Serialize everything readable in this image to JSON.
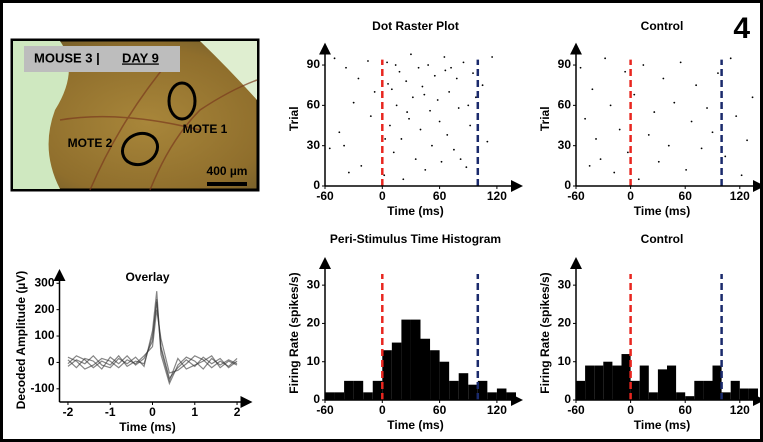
{
  "figure_label": "4",
  "photo": {
    "mouse": "MOUSE 3 |",
    "day": "DAY 9",
    "motes": [
      "MOTE 1",
      "MOTE 2"
    ],
    "scale_bar": "400 µm"
  },
  "chart_data": [
    {
      "type": "line",
      "title": "Overlay",
      "x_label": "Time (ms)",
      "y_label": "Decoded Amplitude (µV)",
      "x": [
        -2,
        -1.8,
        -1.6,
        -1.4,
        -1.2,
        -1,
        -0.8,
        -0.6,
        -0.4,
        -0.2,
        0,
        0.1,
        0.2,
        0.4,
        0.6,
        0.8,
        1,
        1.2,
        1.4,
        1.6,
        1.8,
        2
      ],
      "series": [
        {
          "color": "#333333",
          "values": [
            10,
            -20,
            15,
            5,
            -25,
            20,
            -5,
            25,
            -10,
            15,
            80,
            240,
            60,
            -60,
            -20,
            10,
            -15,
            20,
            -5,
            15,
            -20,
            5
          ]
        },
        {
          "color": "#333333",
          "values": [
            -15,
            10,
            -5,
            25,
            -10,
            -20,
            15,
            -5,
            20,
            -15,
            120,
            270,
            30,
            -80,
            -10,
            20,
            5,
            -25,
            15,
            -10,
            10,
            -5
          ]
        },
        {
          "color": "#333333",
          "values": [
            20,
            5,
            -25,
            -10,
            15,
            5,
            -20,
            10,
            -5,
            25,
            60,
            200,
            90,
            -40,
            -30,
            -5,
            25,
            10,
            -20,
            5,
            -15,
            15
          ]
        },
        {
          "color": "#333333",
          "values": [
            -5,
            25,
            10,
            -20,
            5,
            -10,
            25,
            -15,
            5,
            -5,
            100,
            230,
            50,
            -70,
            15,
            -25,
            -10,
            5,
            25,
            -20,
            5,
            -10
          ]
        }
      ],
      "xlim": [
        -2.2,
        2.2
      ],
      "xticks": [
        -2,
        -1,
        0,
        1,
        2
      ],
      "ylim": [
        -150,
        320
      ],
      "yticks": [
        -100,
        0,
        100,
        200,
        300
      ]
    },
    {
      "type": "scatter",
      "title": "Dot Raster Plot",
      "x_label": "Time (ms)",
      "y_label": "Trial",
      "color": "#000000",
      "x": [
        -50,
        -45,
        -38,
        -30,
        -22,
        -15,
        -8,
        -40,
        -25,
        -12,
        2,
        5,
        8,
        10,
        12,
        15,
        18,
        20,
        22,
        25,
        28,
        30,
        32,
        35,
        38,
        40,
        42,
        45,
        48,
        50,
        52,
        55,
        58,
        60,
        62,
        65,
        68,
        70,
        72,
        75,
        78,
        80,
        85,
        88,
        92,
        95,
        98,
        105,
        110,
        115,
        -35,
        -55,
        3,
        14,
        26,
        44,
        66,
        82,
        90,
        6
      ],
      "y": [
        95,
        40,
        88,
        62,
        15,
        93,
        70,
        30,
        80,
        52,
        8,
        92,
        45,
        72,
        25,
        60,
        85,
        35,
        5,
        78,
        50,
        98,
        66,
        20,
        88,
        42,
        74,
        12,
        90,
        56,
        30,
        82,
        64,
        48,
        18,
        96,
        38,
        70,
        88,
        27,
        80,
        58,
        92,
        14,
        45,
        84,
        66,
        75,
        33,
        96,
        10,
        28,
        35,
        90,
        55,
        68,
        86,
        20,
        60,
        76
      ],
      "markers": [
        {
          "x": 0,
          "color": "#e8261f"
        },
        {
          "x": 100,
          "color": "#1a2a6c"
        }
      ],
      "xlim": [
        -60,
        140
      ],
      "xticks": [
        -60,
        0,
        60,
        120
      ],
      "ylim": [
        0,
        100
      ],
      "yticks": [
        0,
        30,
        60,
        90
      ]
    },
    {
      "type": "scatter",
      "title": "Control",
      "x_label": "Time (ms)",
      "y_label": "Trial",
      "color": "#000000",
      "x": [
        -55,
        -50,
        -45,
        -42,
        -38,
        -33,
        -28,
        -22,
        -18,
        -12,
        -6,
        -3,
        4,
        9,
        14,
        20,
        26,
        31,
        36,
        42,
        48,
        55,
        61,
        67,
        72,
        78,
        84,
        90,
        96,
        104,
        110,
        116,
        122,
        128,
        134
      ],
      "y": [
        88,
        50,
        15,
        72,
        35,
        20,
        95,
        60,
        10,
        42,
        85,
        25,
        68,
        5,
        90,
        38,
        55,
        18,
        80,
        30,
        62,
        92,
        12,
        48,
        75,
        28,
        58,
        40,
        84,
        22,
        95,
        52,
        8,
        34,
        66
      ],
      "markers": [
        {
          "x": 0,
          "color": "#e8261f"
        },
        {
          "x": 100,
          "color": "#1a2a6c"
        }
      ],
      "xlim": [
        -60,
        140
      ],
      "xticks": [
        -60,
        0,
        60,
        120
      ],
      "ylim": [
        0,
        100
      ],
      "yticks": [
        0,
        30,
        60,
        90
      ]
    },
    {
      "type": "histogram",
      "title": "Peri-Stimulus Time Histogram",
      "x_label": "Time (ms)",
      "y_label": "Firing Rate (spikes/s)",
      "color": "#000000",
      "bins": [
        -60,
        -50,
        -40,
        -30,
        -20,
        -10,
        0,
        10,
        20,
        30,
        40,
        50,
        60,
        70,
        80,
        90,
        100,
        110,
        120,
        130,
        140
      ],
      "counts": [
        2,
        2,
        5,
        5,
        2,
        5,
        13,
        15,
        21,
        21,
        16,
        13,
        10,
        5,
        7,
        4,
        5,
        2,
        3,
        2
      ],
      "markers": [
        {
          "x": 0,
          "color": "#e8261f"
        },
        {
          "x": 100,
          "color": "#1a2a6c"
        }
      ],
      "xlim": [
        -60,
        140
      ],
      "xticks": [
        -60,
        0,
        60,
        120
      ],
      "ylim": [
        0,
        35
      ],
      "yticks": [
        0,
        10,
        20,
        30
      ]
    },
    {
      "type": "histogram",
      "title": "Control",
      "x_label": "Time (ms)",
      "y_label": "Firing Rate (spikes/s)",
      "color": "#000000",
      "bins": [
        -60,
        -50,
        -40,
        -30,
        -20,
        -10,
        0,
        10,
        20,
        30,
        40,
        50,
        60,
        70,
        80,
        90,
        100,
        110,
        120,
        130,
        140
      ],
      "counts": [
        5,
        9,
        9,
        10,
        9,
        12,
        5,
        9,
        2,
        8,
        9,
        2,
        1,
        5,
        5,
        9,
        2,
        5,
        3,
        3
      ],
      "markers": [
        {
          "x": 0,
          "color": "#e8261f"
        },
        {
          "x": 100,
          "color": "#1a2a6c"
        }
      ],
      "xlim": [
        -60,
        140
      ],
      "xticks": [
        -60,
        0,
        60,
        120
      ],
      "ylim": [
        0,
        35
      ],
      "yticks": [
        0,
        10,
        20,
        30
      ]
    }
  ]
}
